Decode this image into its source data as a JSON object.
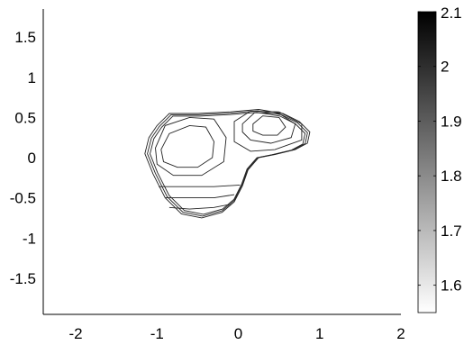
{
  "chart_data": {
    "type": "contour",
    "title": "",
    "xlabel": "",
    "ylabel": "",
    "xlim": [
      -2.4,
      2.0
    ],
    "ylim": [
      -1.95,
      1.85
    ],
    "x_ticks": [
      -2,
      -1,
      0,
      1,
      2
    ],
    "x_tick_labels": [
      "-2",
      "-1",
      "0",
      "1",
      "2"
    ],
    "y_ticks": [
      1.5,
      1,
      0.5,
      0,
      -0.5,
      -1,
      -1.5
    ],
    "y_tick_labels": [
      "1.5",
      "1",
      "0.5",
      "0",
      "-0.5",
      "-1",
      "-1.5"
    ],
    "colorbar": {
      "range": [
        1.55,
        2.1
      ],
      "ticks": [
        2.1,
        2.0,
        1.9,
        1.8,
        1.7,
        1.6
      ],
      "tick_labels": [
        "2.1",
        "2",
        "1.9",
        "1.8",
        "1.7",
        "1.6"
      ],
      "colormap": "gray",
      "low_color": "#ffffff",
      "high_color": "#000000"
    },
    "grid": false,
    "contours": [
      {
        "name": "outer-boundary",
        "level": 1.62,
        "points": [
          [
            -1.0,
            0.4
          ],
          [
            -0.85,
            0.55
          ],
          [
            -0.5,
            0.55
          ],
          [
            -0.1,
            0.57
          ],
          [
            0.25,
            0.6
          ],
          [
            0.55,
            0.55
          ],
          [
            0.75,
            0.45
          ],
          [
            0.88,
            0.32
          ],
          [
            0.85,
            0.18
          ],
          [
            0.7,
            0.1
          ],
          [
            0.45,
            0.04
          ],
          [
            0.25,
            0.0
          ],
          [
            0.12,
            -0.15
          ],
          [
            0.05,
            -0.35
          ],
          [
            -0.05,
            -0.55
          ],
          [
            -0.2,
            -0.68
          ],
          [
            -0.45,
            -0.75
          ],
          [
            -0.7,
            -0.7
          ],
          [
            -0.9,
            -0.5
          ],
          [
            -1.05,
            -0.2
          ],
          [
            -1.15,
            0.05
          ],
          [
            -1.1,
            0.25
          ]
        ]
      },
      {
        "name": "left-inner-basin",
        "level": 1.58,
        "points": [
          [
            -0.95,
            0.1
          ],
          [
            -0.85,
            0.3
          ],
          [
            -0.6,
            0.4
          ],
          [
            -0.4,
            0.38
          ],
          [
            -0.3,
            0.2
          ],
          [
            -0.32,
            0.0
          ],
          [
            -0.5,
            -0.12
          ],
          [
            -0.75,
            -0.12
          ],
          [
            -0.92,
            -0.05
          ]
        ]
      },
      {
        "name": "left-basin-ring",
        "level": 1.6,
        "points": [
          [
            -1.02,
            0.12
          ],
          [
            -0.9,
            0.4
          ],
          [
            -0.6,
            0.5
          ],
          [
            -0.3,
            0.48
          ],
          [
            -0.15,
            0.25
          ],
          [
            -0.18,
            -0.05
          ],
          [
            -0.45,
            -0.22
          ],
          [
            -0.8,
            -0.22
          ],
          [
            -1.0,
            -0.08
          ]
        ]
      },
      {
        "name": "upper-right-peak",
        "level": 1.9,
        "points": [
          [
            0.18,
            0.42
          ],
          [
            0.3,
            0.52
          ],
          [
            0.5,
            0.5
          ],
          [
            0.58,
            0.38
          ],
          [
            0.48,
            0.28
          ],
          [
            0.3,
            0.28
          ],
          [
            0.18,
            0.33
          ]
        ]
      },
      {
        "name": "upper-right-ring-1",
        "level": 1.8,
        "points": [
          [
            0.05,
            0.42
          ],
          [
            0.2,
            0.56
          ],
          [
            0.5,
            0.55
          ],
          [
            0.7,
            0.42
          ],
          [
            0.65,
            0.25
          ],
          [
            0.4,
            0.18
          ],
          [
            0.15,
            0.22
          ],
          [
            0.05,
            0.32
          ]
        ]
      },
      {
        "name": "upper-right-ring-2",
        "level": 1.7,
        "points": [
          [
            -0.05,
            0.45
          ],
          [
            0.15,
            0.58
          ],
          [
            0.5,
            0.57
          ],
          [
            0.78,
            0.42
          ],
          [
            0.78,
            0.22
          ],
          [
            0.45,
            0.1
          ],
          [
            0.15,
            0.08
          ],
          [
            -0.05,
            0.2
          ]
        ]
      },
      {
        "name": "bottom-band-1",
        "level": 1.75,
        "points": [
          [
            -0.85,
            -0.62
          ],
          [
            -0.6,
            -0.64
          ],
          [
            -0.3,
            -0.62
          ],
          [
            -0.1,
            -0.58
          ]
        ]
      },
      {
        "name": "bottom-band-2",
        "level": 1.7,
        "points": [
          [
            -0.9,
            -0.5
          ],
          [
            -0.6,
            -0.5
          ],
          [
            -0.3,
            -0.5
          ],
          [
            -0.05,
            -0.46
          ]
        ]
      },
      {
        "name": "bottom-band-3",
        "level": 1.65,
        "points": [
          [
            -0.98,
            -0.36
          ],
          [
            -0.6,
            -0.36
          ],
          [
            -0.3,
            -0.36
          ],
          [
            0.02,
            -0.34
          ]
        ]
      }
    ]
  }
}
